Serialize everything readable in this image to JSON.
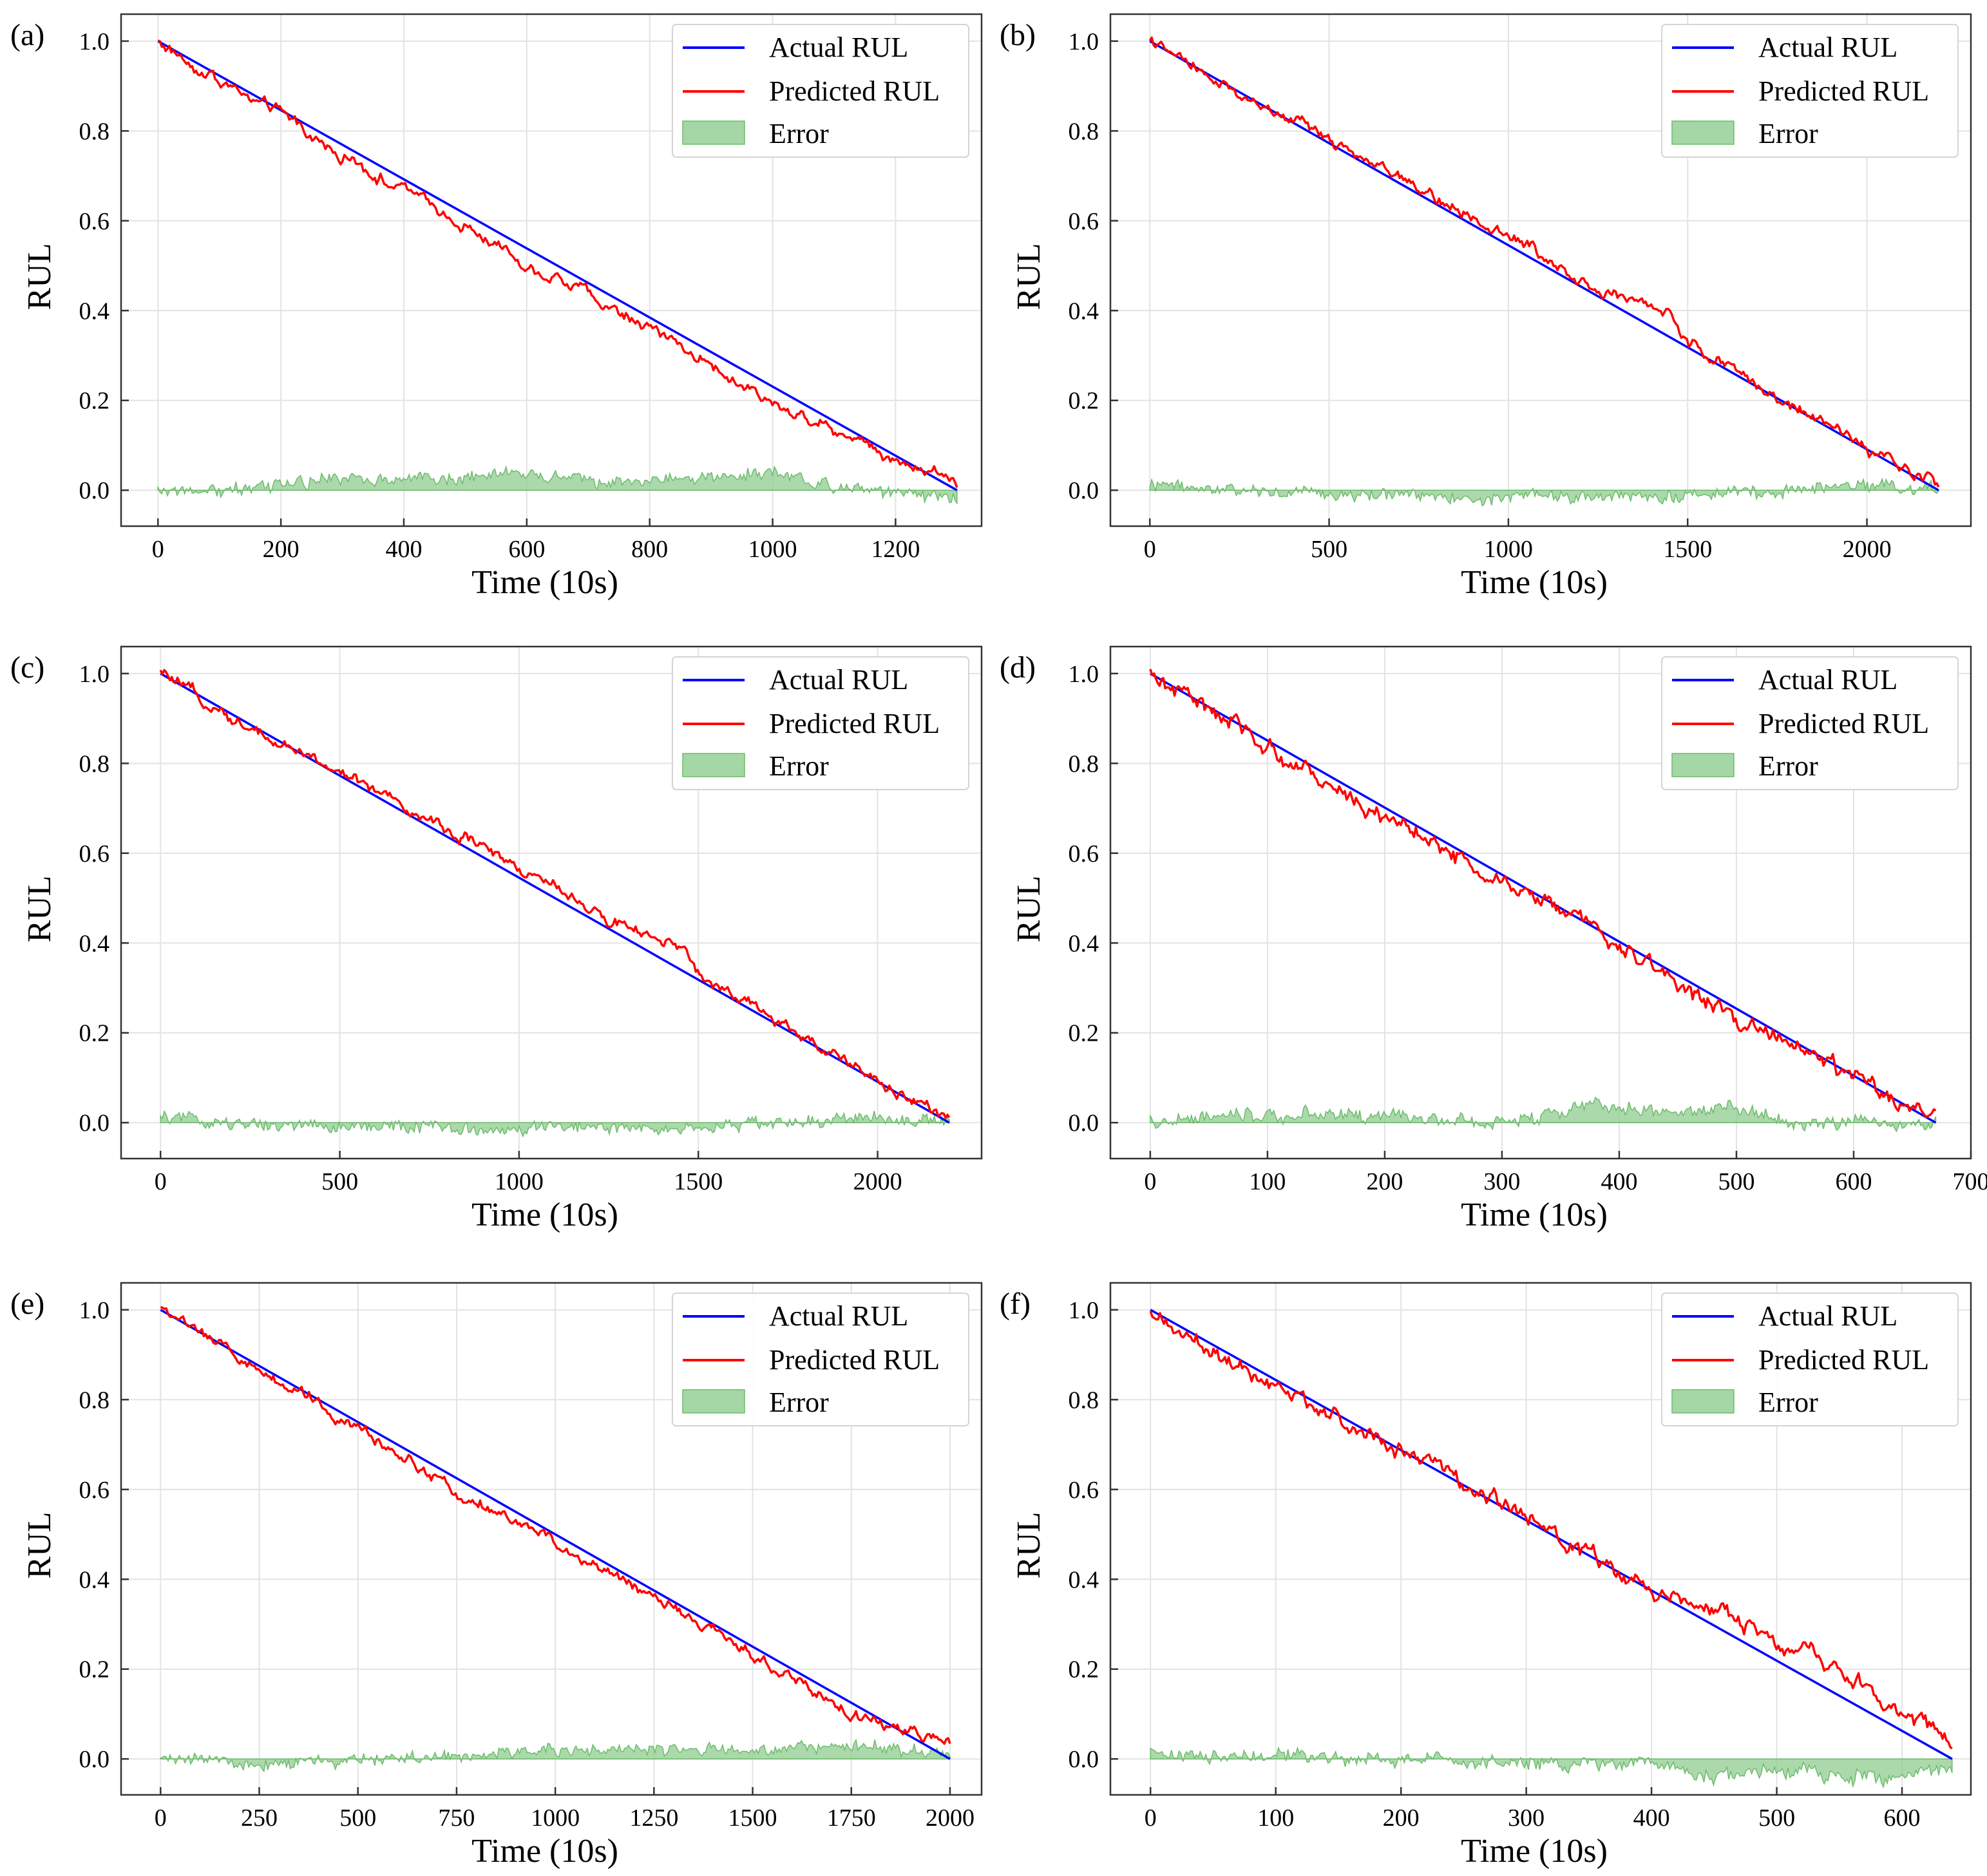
{
  "figure": {
    "colors": {
      "actual": "#0000ff",
      "predicted": "#ff0000",
      "error_fill": "#8fcc8f",
      "error_line": "#6dbb6d",
      "grid": "#e3e3e3",
      "axis": "#333333"
    }
  },
  "chart_data": [
    {
      "panel_label": "(a)",
      "type": "line",
      "xlabel": "Time (10s)",
      "ylabel": "RUL",
      "xlim": [
        -60,
        1340
      ],
      "ylim": [
        -0.08,
        1.06
      ],
      "xticks": [
        0,
        200,
        400,
        600,
        800,
        1000,
        1200
      ],
      "xtick_labels": [
        "0",
        "200",
        "400",
        "600",
        "800",
        "1000",
        "1200"
      ],
      "yticks": [
        0.0,
        0.2,
        0.4,
        0.6,
        0.8,
        1.0
      ],
      "ytick_labels": [
        "0.0",
        "0.2",
        "0.4",
        "0.6",
        "0.8",
        "1.0"
      ],
      "legend": {
        "position": "top-right",
        "entries": [
          "Actual RUL",
          "Predicted RUL",
          "Error"
        ]
      },
      "series": [
        {
          "name": "Actual RUL",
          "x": [
            0,
            1300
          ],
          "y": [
            1.0,
            0.0
          ]
        },
        {
          "name": "Predicted RUL",
          "x": [
            0,
            100,
            200,
            300,
            400,
            500,
            600,
            700,
            800,
            900,
            1000,
            1100,
            1200,
            1300
          ],
          "y": [
            1.0,
            0.91,
            0.84,
            0.74,
            0.67,
            0.59,
            0.5,
            0.44,
            0.36,
            0.28,
            0.19,
            0.14,
            0.07,
            0.02
          ]
        },
        {
          "name": "Error",
          "x": [
            0,
            100,
            200,
            300,
            400,
            500,
            600,
            700,
            800,
            900,
            1000,
            1100,
            1200,
            1300
          ],
          "y": [
            0.0,
            0.0,
            0.01,
            0.03,
            0.02,
            0.03,
            0.04,
            0.02,
            0.02,
            0.03,
            0.04,
            0.01,
            0.0,
            -0.02
          ]
        }
      ]
    },
    {
      "panel_label": "(b)",
      "type": "line",
      "xlabel": "Time (10s)",
      "ylabel": "RUL",
      "xlim": [
        -110,
        2290
      ],
      "ylim": [
        -0.08,
        1.06
      ],
      "xticks": [
        0,
        500,
        1000,
        1500,
        2000
      ],
      "xtick_labels": [
        "0",
        "500",
        "1000",
        "1500",
        "2000"
      ],
      "yticks": [
        0.0,
        0.2,
        0.4,
        0.6,
        0.8,
        1.0
      ],
      "ytick_labels": [
        "0.0",
        "0.2",
        "0.4",
        "0.6",
        "0.8",
        "1.0"
      ],
      "legend": {
        "position": "top-right",
        "entries": [
          "Actual RUL",
          "Predicted RUL",
          "Error"
        ]
      },
      "series": [
        {
          "name": "Actual RUL",
          "x": [
            0,
            2200
          ],
          "y": [
            1.0,
            0.0
          ]
        },
        {
          "name": "Predicted RUL",
          "x": [
            0,
            250,
            500,
            750,
            1000,
            1250,
            1450,
            1500,
            1750,
            2000,
            2200
          ],
          "y": [
            1.0,
            0.88,
            0.78,
            0.67,
            0.57,
            0.45,
            0.39,
            0.33,
            0.21,
            0.09,
            0.01
          ]
        },
        {
          "name": "Error",
          "x": [
            0,
            250,
            500,
            750,
            900,
            1000,
            1250,
            1450,
            1500,
            1750,
            2000,
            2200
          ],
          "y": [
            0.01,
            0.0,
            -0.01,
            -0.01,
            -0.02,
            -0.01,
            -0.01,
            -0.02,
            -0.01,
            0.0,
            0.01,
            0.0
          ]
        }
      ]
    },
    {
      "panel_label": "(c)",
      "type": "line",
      "xlabel": "Time (10s)",
      "ylabel": "RUL",
      "xlim": [
        -110,
        2290
      ],
      "ylim": [
        -0.08,
        1.06
      ],
      "xticks": [
        0,
        500,
        1000,
        1500,
        2000
      ],
      "xtick_labels": [
        "0",
        "500",
        "1000",
        "1500",
        "2000"
      ],
      "yticks": [
        0.0,
        0.2,
        0.4,
        0.6,
        0.8,
        1.0
      ],
      "ytick_labels": [
        "0.0",
        "0.2",
        "0.4",
        "0.6",
        "0.8",
        "1.0"
      ],
      "legend": {
        "position": "top-right",
        "entries": [
          "Actual RUL",
          "Predicted RUL",
          "Error"
        ]
      },
      "series": [
        {
          "name": "Actual RUL",
          "x": [
            0,
            2200
          ],
          "y": [
            1.0,
            0.0
          ]
        },
        {
          "name": "Predicted RUL",
          "x": [
            0,
            250,
            500,
            750,
            1000,
            1250,
            1450,
            1500,
            1750,
            2000,
            2200
          ],
          "y": [
            1.0,
            0.88,
            0.78,
            0.67,
            0.57,
            0.45,
            0.39,
            0.33,
            0.21,
            0.09,
            0.01
          ]
        },
        {
          "name": "Error",
          "x": [
            0,
            250,
            500,
            750,
            900,
            1000,
            1250,
            1450,
            1500,
            1750,
            2000,
            2200
          ],
          "y": [
            0.01,
            0.0,
            -0.01,
            -0.01,
            -0.02,
            -0.01,
            -0.01,
            -0.02,
            -0.01,
            0.0,
            0.01,
            0.0
          ]
        }
      ]
    },
    {
      "panel_label": "(d)",
      "type": "line",
      "xlabel": "Time (10s)",
      "ylabel": "RUL",
      "xlim": [
        -34,
        700
      ],
      "ylim": [
        -0.08,
        1.06
      ],
      "xticks": [
        0,
        100,
        200,
        300,
        400,
        500,
        600,
        700
      ],
      "xtick_labels": [
        "0",
        "100",
        "200",
        "300",
        "400",
        "500",
        "600",
        "700"
      ],
      "yticks": [
        0.0,
        0.2,
        0.4,
        0.6,
        0.8,
        1.0
      ],
      "ytick_labels": [
        "0.0",
        "0.2",
        "0.4",
        "0.6",
        "0.8",
        "1.0"
      ],
      "legend": {
        "position": "top-right",
        "entries": [
          "Actual RUL",
          "Predicted RUL",
          "Error"
        ]
      },
      "series": [
        {
          "name": "Actual RUL",
          "x": [
            0,
            670
          ],
          "y": [
            1.0,
            0.0
          ]
        },
        {
          "name": "Predicted RUL",
          "x": [
            0,
            100,
            200,
            250,
            300,
            350,
            400,
            450,
            500,
            550,
            600,
            650,
            670
          ],
          "y": [
            1.0,
            0.84,
            0.68,
            0.62,
            0.53,
            0.48,
            0.39,
            0.31,
            0.22,
            0.18,
            0.1,
            0.02,
            0.04
          ]
        },
        {
          "name": "Error",
          "x": [
            0,
            100,
            200,
            250,
            300,
            350,
            380,
            400,
            450,
            500,
            550,
            600,
            650,
            670
          ],
          "y": [
            0.0,
            0.02,
            0.02,
            0.01,
            0.0,
            0.02,
            0.04,
            0.03,
            0.02,
            0.03,
            0.0,
            0.0,
            -0.01,
            0.01
          ]
        }
      ]
    },
    {
      "panel_label": "(e)",
      "type": "line",
      "xlabel": "Time (10s)",
      "ylabel": "RUL",
      "xlim": [
        -100,
        2080
      ],
      "ylim": [
        -0.08,
        1.06
      ],
      "xticks": [
        0,
        250,
        500,
        750,
        1000,
        1250,
        1500,
        1750,
        2000
      ],
      "xtick_labels": [
        "0",
        "250",
        "500",
        "750",
        "1000",
        "1250",
        "1500",
        "1750",
        "2000"
      ],
      "yticks": [
        0.0,
        0.2,
        0.4,
        0.6,
        0.8,
        1.0
      ],
      "ytick_labels": [
        "0.0",
        "0.2",
        "0.4",
        "0.6",
        "0.8",
        "1.0"
      ],
      "legend": {
        "position": "top-right",
        "entries": [
          "Actual RUL",
          "Predicted RUL",
          "Error"
        ]
      },
      "series": [
        {
          "name": "Actual RUL",
          "x": [
            0,
            2000
          ],
          "y": [
            1.0,
            0.0
          ]
        },
        {
          "name": "Predicted RUL",
          "x": [
            0,
            250,
            500,
            750,
            1000,
            1250,
            1500,
            1750,
            2000
          ],
          "y": [
            1.0,
            0.87,
            0.74,
            0.6,
            0.48,
            0.36,
            0.23,
            0.1,
            0.03
          ]
        },
        {
          "name": "Error",
          "x": [
            0,
            250,
            500,
            750,
            1000,
            1250,
            1500,
            1750,
            2000
          ],
          "y": [
            0.0,
            -0.01,
            0.0,
            0.01,
            0.02,
            0.02,
            0.02,
            0.03,
            0.01
          ]
        }
      ]
    },
    {
      "panel_label": "(f)",
      "type": "line",
      "xlabel": "Time (10s)",
      "ylabel": "RUL",
      "xlim": [
        -32,
        655
      ],
      "ylim": [
        -0.08,
        1.06
      ],
      "xticks": [
        0,
        100,
        200,
        300,
        400,
        500,
        600
      ],
      "xtick_labels": [
        "0",
        "100",
        "200",
        "300",
        "400",
        "500",
        "600"
      ],
      "yticks": [
        0.0,
        0.2,
        0.4,
        0.6,
        0.8,
        1.0
      ],
      "ytick_labels": [
        "0.0",
        "0.2",
        "0.4",
        "0.6",
        "0.8",
        "1.0"
      ],
      "legend": {
        "position": "top-right",
        "entries": [
          "Actual RUL",
          "Predicted RUL",
          "Error"
        ]
      },
      "series": [
        {
          "name": "Actual RUL",
          "x": [
            0,
            640
          ],
          "y": [
            1.0,
            0.0
          ]
        },
        {
          "name": "Predicted RUL",
          "x": [
            0,
            100,
            200,
            300,
            400,
            450,
            500,
            550,
            600,
            640
          ],
          "y": [
            0.99,
            0.83,
            0.69,
            0.54,
            0.37,
            0.34,
            0.25,
            0.2,
            0.1,
            0.04
          ]
        },
        {
          "name": "Error",
          "x": [
            0,
            100,
            200,
            300,
            400,
            450,
            500,
            550,
            600,
            640
          ],
          "y": [
            0.01,
            0.01,
            0.0,
            -0.01,
            -0.01,
            -0.04,
            -0.03,
            -0.04,
            -0.04,
            -0.02
          ]
        }
      ]
    }
  ]
}
